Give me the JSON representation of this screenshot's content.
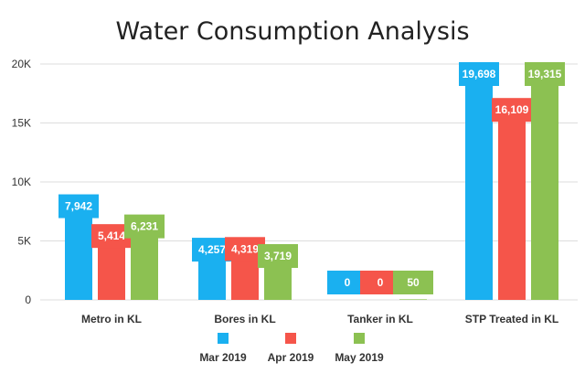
{
  "chart_data": {
    "type": "bar",
    "title": "Water Consumption Analysis",
    "categories": [
      "Metro in KL",
      "Bores in KL",
      "Tanker in KL",
      "STP Treated in KL"
    ],
    "series": [
      {
        "name": "Mar 2019",
        "color": "#1ab0f0",
        "values": [
          7942,
          4257,
          0,
          19698
        ],
        "labels": [
          "7,942",
          "4,257",
          "0",
          "19,698"
        ]
      },
      {
        "name": "Apr 2019",
        "color": "#f5554a",
        "values": [
          5414,
          4319,
          0,
          16109
        ],
        "labels": [
          "5,414",
          "4,319",
          "0",
          "16,109"
        ]
      },
      {
        "name": "May 2019",
        "color": "#8cc152",
        "values": [
          6231,
          3719,
          50,
          19315
        ],
        "labels": [
          "6,231",
          "3,719",
          "50",
          "19,315"
        ]
      }
    ],
    "ylim": [
      0,
      20000
    ],
    "yticks": [
      {
        "value": 0,
        "label": "0"
      },
      {
        "value": 5000,
        "label": "5K"
      },
      {
        "value": 10000,
        "label": "10K"
      },
      {
        "value": 15000,
        "label": "15K"
      },
      {
        "value": 20000,
        "label": "20K"
      }
    ],
    "grid": true,
    "legend_position": "bottom"
  }
}
